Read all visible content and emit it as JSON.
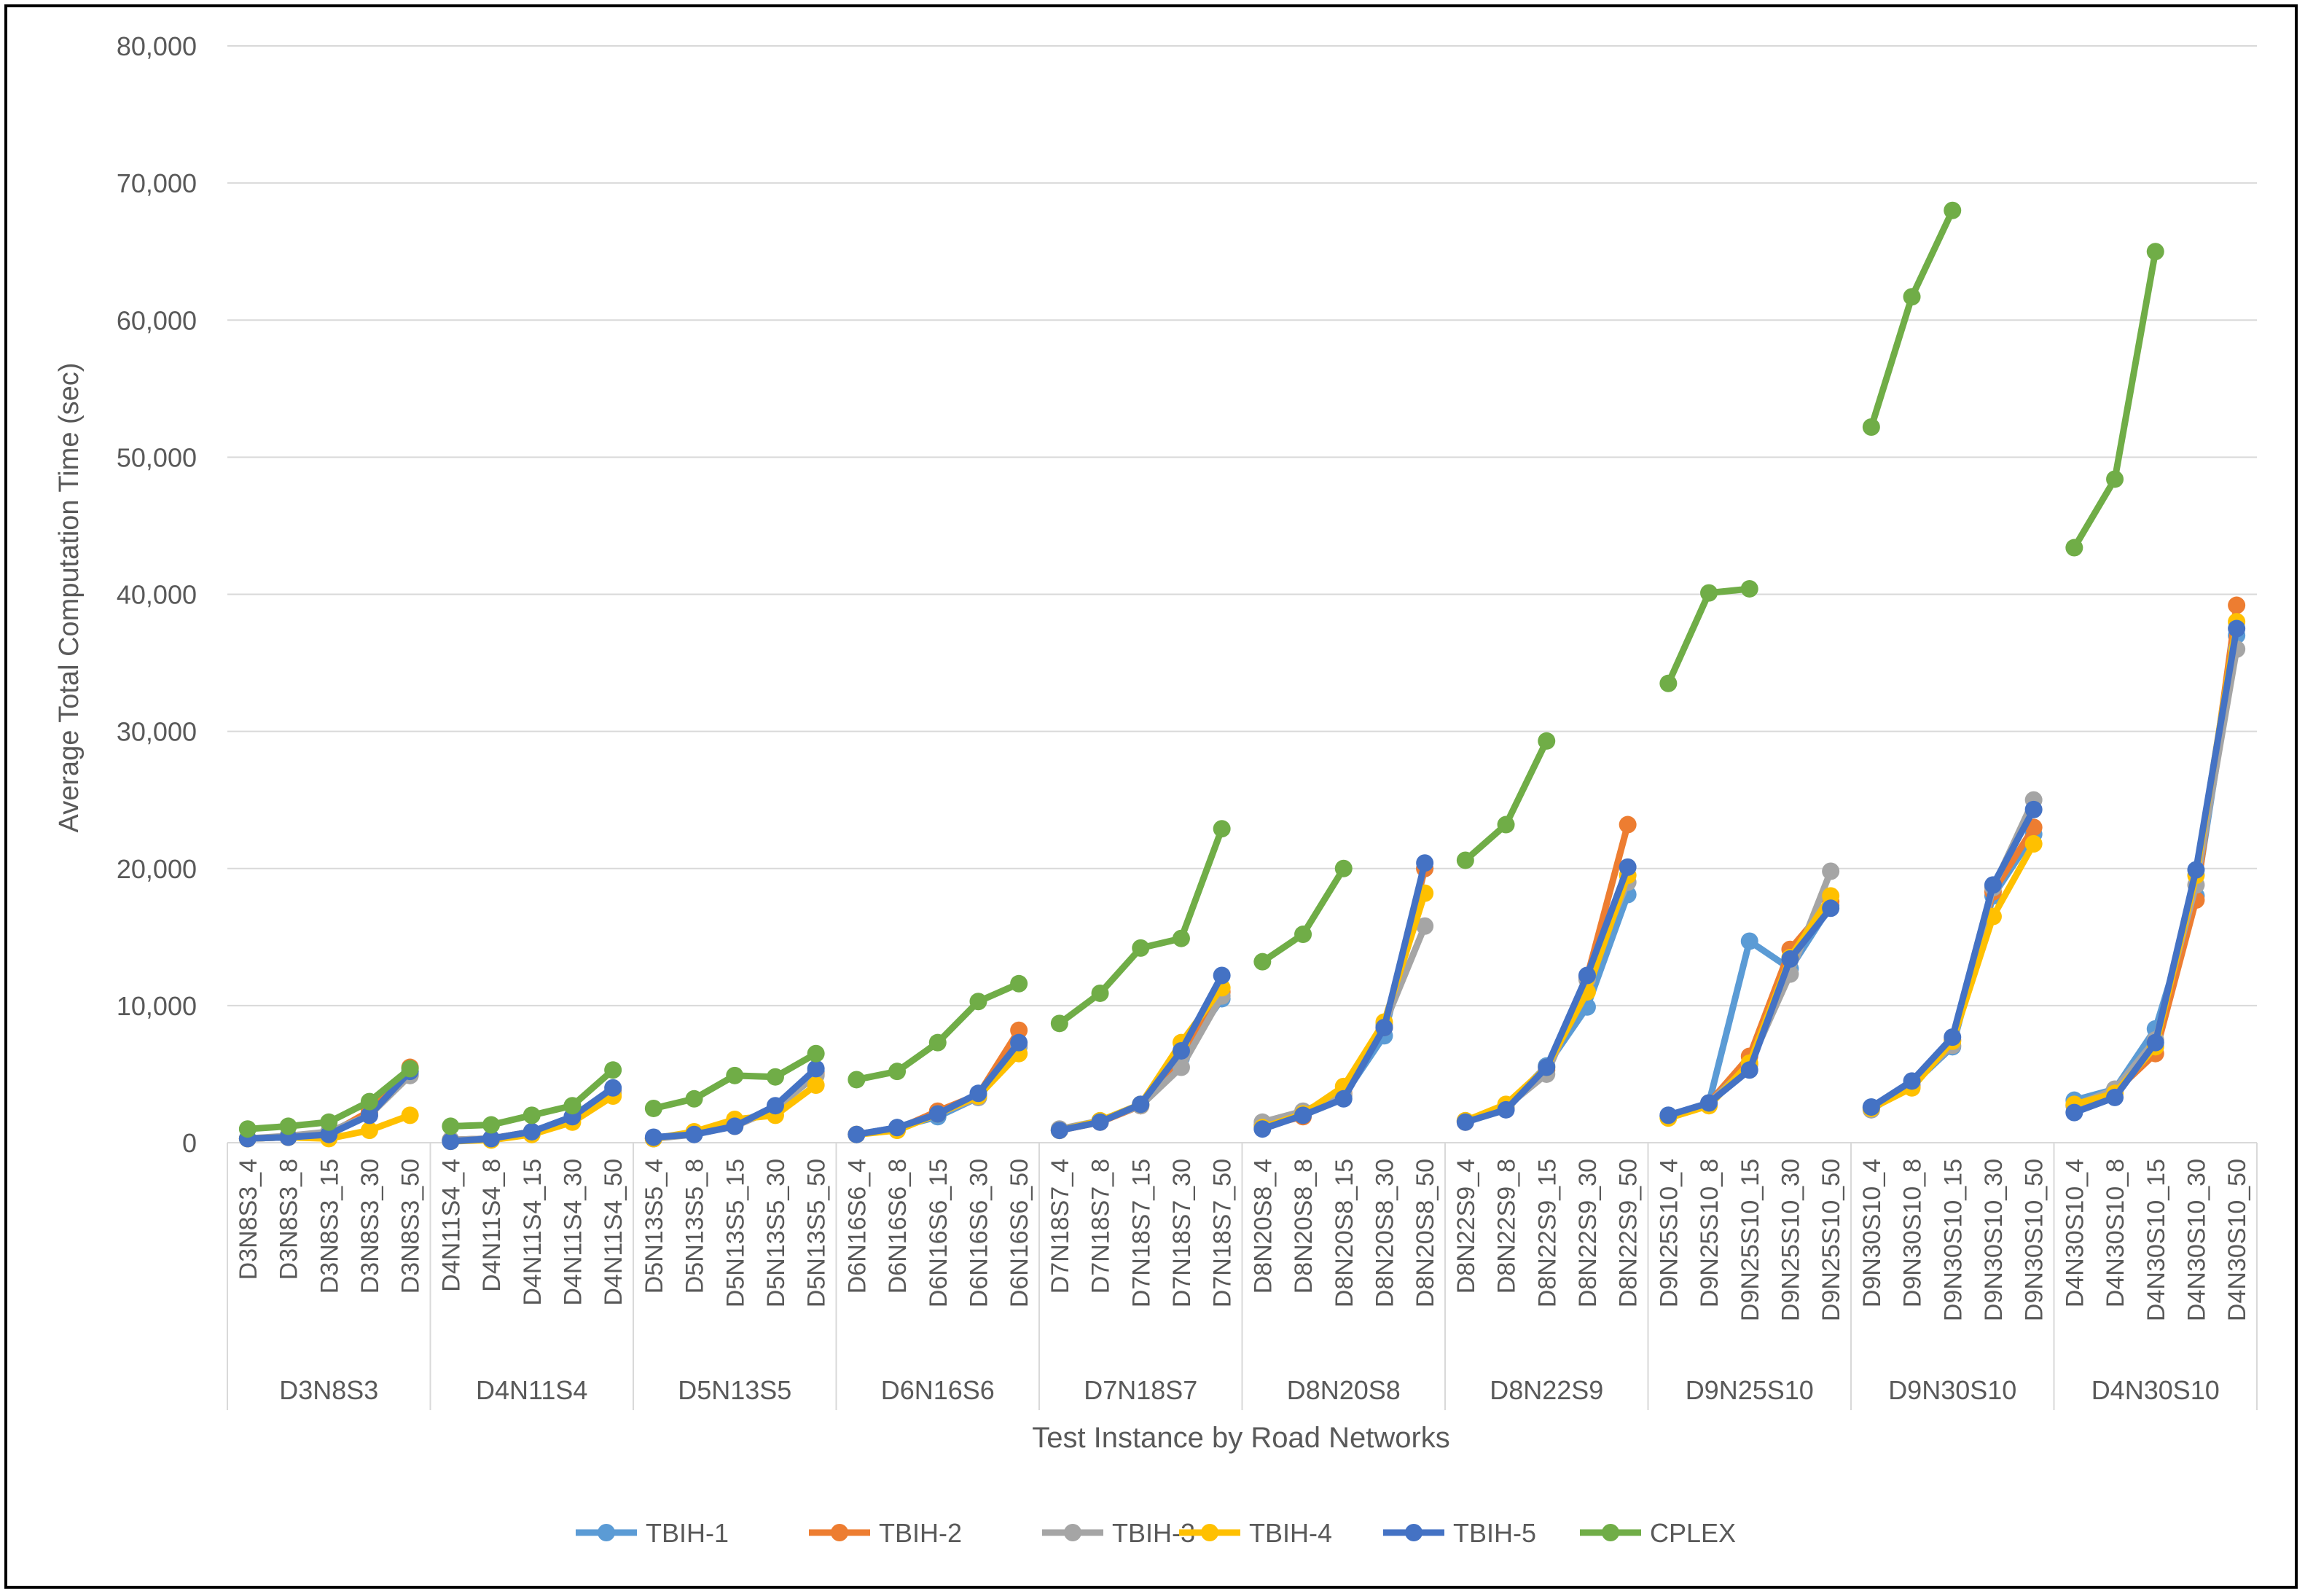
{
  "chart_data": {
    "type": "line",
    "title": "",
    "xlabel": "Test Instance by Road Networks",
    "ylabel": "Average Total Computation Time (sec)",
    "ylim": [
      0,
      80000
    ],
    "yticks": [
      "0",
      "10,000",
      "20,000",
      "30,000",
      "40,000",
      "50,000",
      "60,000",
      "70,000",
      "80,000"
    ],
    "grid": "horizontal",
    "legend_position": "bottom",
    "groups": [
      {
        "name": "D3N8S3",
        "instances": [
          "D3N8S3_4",
          "D3N8S3_8",
          "D3N8S3_15",
          "D3N8S3_30",
          "D3N8S3_50"
        ]
      },
      {
        "name": "D4N11S4",
        "instances": [
          "D4N11S4_4",
          "D4N11S4_8",
          "D4N11S4_15",
          "D4N11S4_30",
          "D4N11S4_50"
        ]
      },
      {
        "name": "D5N13S5",
        "instances": [
          "D5N13S5_4",
          "D5N13S5_8",
          "D5N13S5_15",
          "D5N13S5_30",
          "D5N13S5_50"
        ]
      },
      {
        "name": "D6N16S6",
        "instances": [
          "D6N16S6_4",
          "D6N16S6_8",
          "D6N16S6_15",
          "D6N16S6_30",
          "D6N16S6_50"
        ]
      },
      {
        "name": "D7N18S7",
        "instances": [
          "D7N18S7_4",
          "D7N18S7_8",
          "D7N18S7_15",
          "D7N18S7_30",
          "D7N18S7_50"
        ]
      },
      {
        "name": "D8N20S8",
        "instances": [
          "D8N20S8_4",
          "D8N20S8_8",
          "D8N20S8_15",
          "D8N20S8_30",
          "D8N20S8_50"
        ]
      },
      {
        "name": "D8N22S9",
        "instances": [
          "D8N22S9_4",
          "D8N22S9_8",
          "D8N22S9_15",
          "D8N22S9_30",
          "D8N22S9_50"
        ]
      },
      {
        "name": "D9N25S10",
        "instances": [
          "D9N25S10_4",
          "D9N25S10_8",
          "D9N25S10_15",
          "D9N25S10_30",
          "D9N25S10_50"
        ]
      },
      {
        "name": "D9N30S10",
        "instances": [
          "D9N30S10_4",
          "D9N30S10_8",
          "D9N30S10_15",
          "D9N30S10_30",
          "D9N30S10_50"
        ]
      },
      {
        "name": "D4N30S10",
        "instances": [
          "D4N30S10_4",
          "D4N30S10_8",
          "D4N30S10_15",
          "D4N30S10_30",
          "D4N30S10_50"
        ]
      }
    ],
    "series": [
      {
        "name": "TBIH-1",
        "color": "#5B9BD5",
        "values": [
          [
            300,
            400,
            700,
            2200,
            5000
          ],
          [
            200,
            300,
            800,
            1900,
            3800
          ],
          [
            300,
            700,
            1300,
            2600,
            5200
          ],
          [
            600,
            1100,
            1900,
            3300,
            7000
          ],
          [
            900,
            1600,
            2800,
            6200,
            10500
          ],
          [
            1300,
            2100,
            3400,
            7800,
            20000
          ],
          [
            1600,
            2600,
            5600,
            9900,
            18100
          ],
          [
            2000,
            2900,
            14700,
            12700,
            17300
          ],
          [
            2600,
            4200,
            7000,
            18000,
            22500
          ],
          [
            3100,
            3900,
            8300,
            18000,
            37000
          ]
        ]
      },
      {
        "name": "TBIH-2",
        "color": "#ED7D31",
        "values": [
          [
            300,
            400,
            600,
            2300,
            5500
          ],
          [
            200,
            300,
            800,
            1800,
            3700
          ],
          [
            300,
            700,
            1200,
            2500,
            5000
          ],
          [
            600,
            1000,
            2300,
            3500,
            8200
          ],
          [
            900,
            1500,
            2700,
            6400,
            11000
          ],
          [
            1200,
            1900,
            3600,
            8400,
            20000
          ],
          [
            1500,
            2500,
            5300,
            12100,
            23200
          ],
          [
            1900,
            2900,
            6300,
            14100,
            17600
          ],
          [
            2500,
            4200,
            7500,
            18300,
            23000
          ],
          [
            2700,
            3700,
            6500,
            17700,
            39200
          ]
        ]
      },
      {
        "name": "TBIH-3",
        "color": "#A5A5A5",
        "values": [
          [
            300,
            500,
            800,
            2000,
            4900
          ],
          [
            200,
            300,
            700,
            1800,
            3600
          ],
          [
            300,
            600,
            1200,
            2500,
            4900
          ],
          [
            600,
            1100,
            2100,
            3300,
            7100
          ],
          [
            1000,
            1600,
            2700,
            5500,
            10700
          ],
          [
            1500,
            2300,
            3500,
            8600,
            15800
          ],
          [
            1600,
            2600,
            5000,
            11900,
            19000
          ],
          [
            1900,
            2900,
            5700,
            12300,
            19800
          ],
          [
            2400,
            4300,
            7100,
            18600,
            25000
          ],
          [
            2700,
            3900,
            7500,
            18800,
            36000
          ]
        ]
      },
      {
        "name": "TBIH-4",
        "color": "#FFC000",
        "values": [
          [
            300,
            400,
            300,
            900,
            2000
          ],
          [
            100,
            200,
            600,
            1500,
            3400
          ],
          [
            300,
            800,
            1700,
            2000,
            4200
          ],
          [
            600,
            900,
            2100,
            3400,
            6500
          ],
          [
            900,
            1600,
            2800,
            7300,
            11300
          ],
          [
            1100,
            2100,
            4100,
            8800,
            18200
          ],
          [
            1600,
            2800,
            5500,
            11000,
            19500
          ],
          [
            1800,
            2700,
            5800,
            13500,
            18000
          ],
          [
            2500,
            4000,
            7400,
            16500,
            21800
          ],
          [
            2800,
            3600,
            7000,
            19500,
            38000
          ]
        ]
      },
      {
        "name": "TBIH-5",
        "color": "#4472C4",
        "values": [
          [
            300,
            400,
            600,
            2000,
            5200
          ],
          [
            100,
            300,
            800,
            1900,
            4000
          ],
          [
            400,
            600,
            1200,
            2700,
            5400
          ],
          [
            600,
            1100,
            2100,
            3600,
            7300
          ],
          [
            900,
            1500,
            2800,
            6700,
            12200
          ],
          [
            1000,
            2000,
            3200,
            8400,
            20400
          ],
          [
            1500,
            2400,
            5500,
            12200,
            20100
          ],
          [
            2000,
            2900,
            5300,
            13400,
            17100
          ],
          [
            2600,
            4500,
            7700,
            18800,
            24300
          ],
          [
            2200,
            3300,
            7300,
            19900,
            37500
          ]
        ]
      },
      {
        "name": "CPLEX",
        "color": "#70AD47",
        "values": [
          [
            1000,
            1200,
            1500,
            3000,
            5400
          ],
          [
            1200,
            1300,
            2000,
            2700,
            5300
          ],
          [
            2500,
            3200,
            4900,
            4800,
            6500
          ],
          [
            4600,
            5200,
            7300,
            10300,
            11600
          ],
          [
            8700,
            10900,
            14200,
            14900,
            22900
          ],
          [
            13200,
            15200,
            20000,
            null,
            null
          ],
          [
            20600,
            23200,
            29300,
            null,
            null
          ],
          [
            33500,
            40100,
            40400,
            null,
            null
          ],
          [
            52200,
            61700,
            68000,
            null,
            null
          ],
          [
            43400,
            48400,
            65000,
            null,
            null
          ]
        ]
      }
    ]
  }
}
